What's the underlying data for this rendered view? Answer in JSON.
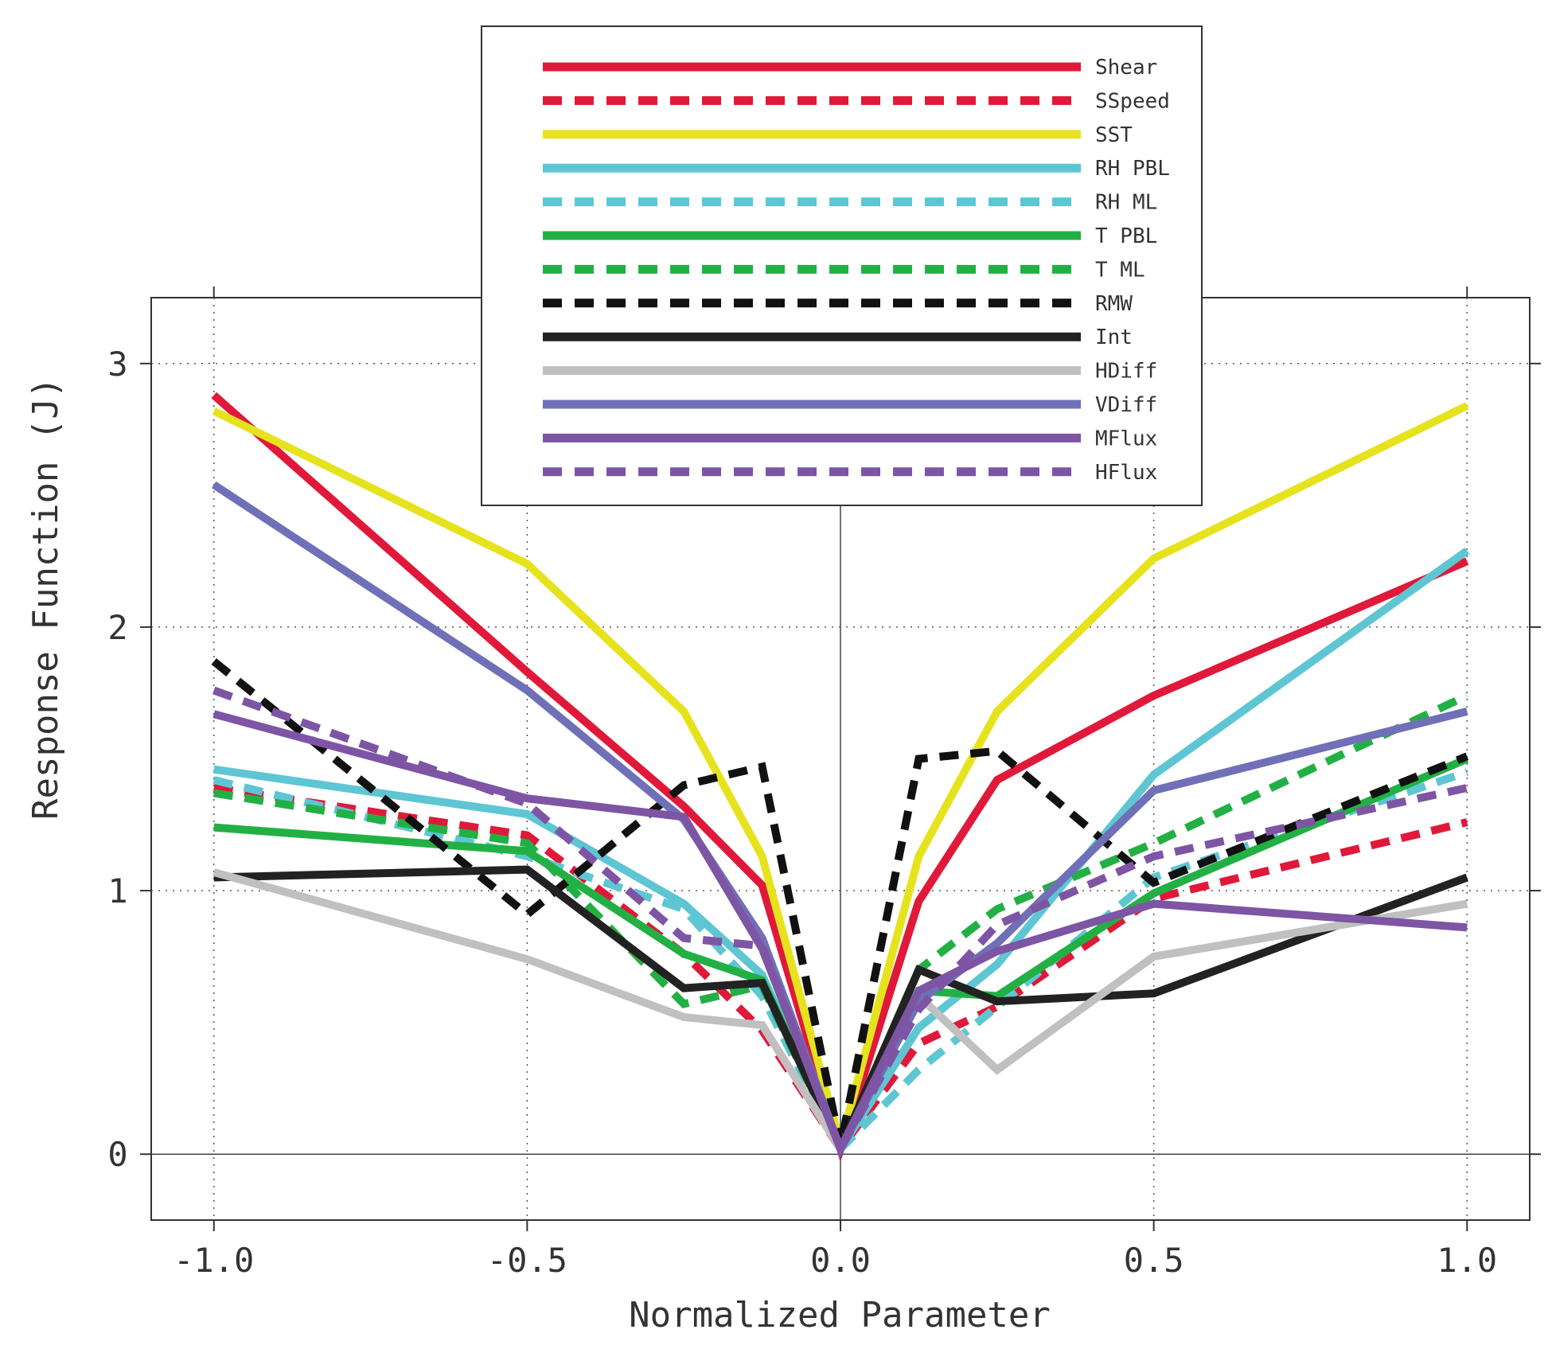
{
  "chart_data": {
    "type": "line",
    "xlabel": "Normalized Parameter",
    "ylabel": "Response Function (J)",
    "xlim": [
      -1.1,
      1.1
    ],
    "ylim": [
      -0.25,
      3.25
    ],
    "x_ticks": [
      "-1.0",
      "-0.5",
      "0.0",
      "0.5",
      "1.0"
    ],
    "y_ticks": [
      "0",
      "1",
      "2",
      "3"
    ],
    "grid": "dotted",
    "legend_position": "top-center",
    "x": [
      -1.0,
      -0.5,
      -0.25,
      -0.125,
      0.0,
      0.125,
      0.25,
      0.5,
      1.0
    ],
    "series": [
      {
        "name": "Shear",
        "color": "#e0193a",
        "dash": false,
        "values": [
          2.88,
          1.83,
          1.32,
          1.02,
          0.02,
          0.96,
          1.42,
          1.74,
          2.25
        ]
      },
      {
        "name": "SSpeed",
        "color": "#e0193a",
        "dash": true,
        "values": [
          1.39,
          1.21,
          0.76,
          0.47,
          0.02,
          0.42,
          0.56,
          0.97,
          1.26
        ]
      },
      {
        "name": "SST",
        "color": "#e6e31e",
        "dash": false,
        "values": [
          2.82,
          2.24,
          1.68,
          1.13,
          0.04,
          1.13,
          1.68,
          2.26,
          2.84
        ]
      },
      {
        "name": "RH PBL",
        "color": "#5ec6d3",
        "dash": false,
        "values": [
          1.46,
          1.29,
          0.95,
          0.68,
          0.02,
          0.48,
          0.72,
          1.44,
          2.29
        ]
      },
      {
        "name": "RH ML",
        "color": "#5ec6d3",
        "dash": true,
        "values": [
          1.42,
          1.13,
          0.93,
          0.6,
          0.02,
          0.32,
          0.56,
          1.05,
          1.45
        ]
      },
      {
        "name": "T PBL",
        "color": "#22b045",
        "dash": false,
        "values": [
          1.24,
          1.15,
          0.76,
          0.66,
          0.02,
          0.62,
          0.6,
          0.99,
          1.5
        ]
      },
      {
        "name": "T ML",
        "color": "#22b045",
        "dash": true,
        "values": [
          1.37,
          1.18,
          0.57,
          0.64,
          0.02,
          0.7,
          0.93,
          1.18,
          1.74
        ]
      },
      {
        "name": "RMW",
        "color": "#111111",
        "dash": true,
        "values": [
          1.87,
          0.91,
          1.4,
          1.47,
          0.03,
          1.5,
          1.53,
          1.03,
          1.51
        ]
      },
      {
        "name": "Int",
        "color": "#222222",
        "dash": false,
        "values": [
          1.05,
          1.08,
          0.63,
          0.65,
          0.02,
          0.7,
          0.58,
          0.61,
          1.05
        ]
      },
      {
        "name": "HDiff",
        "color": "#c0c0c0",
        "dash": false,
        "values": [
          1.07,
          0.74,
          0.52,
          0.49,
          0.02,
          0.6,
          0.32,
          0.75,
          0.95
        ]
      },
      {
        "name": "VDiff",
        "color": "#7070b8",
        "dash": false,
        "values": [
          2.54,
          1.76,
          1.27,
          0.82,
          0.02,
          0.58,
          0.8,
          1.38,
          1.68
        ]
      },
      {
        "name": "MFlux",
        "color": "#7e55a5",
        "dash": false,
        "values": [
          1.67,
          1.35,
          1.28,
          0.78,
          0.02,
          0.62,
          0.77,
          0.95,
          0.86
        ]
      },
      {
        "name": "HFlux",
        "color": "#7e55a5",
        "dash": true,
        "values": [
          1.76,
          1.33,
          0.82,
          0.79,
          0.02,
          0.55,
          0.87,
          1.13,
          1.39
        ]
      }
    ]
  }
}
